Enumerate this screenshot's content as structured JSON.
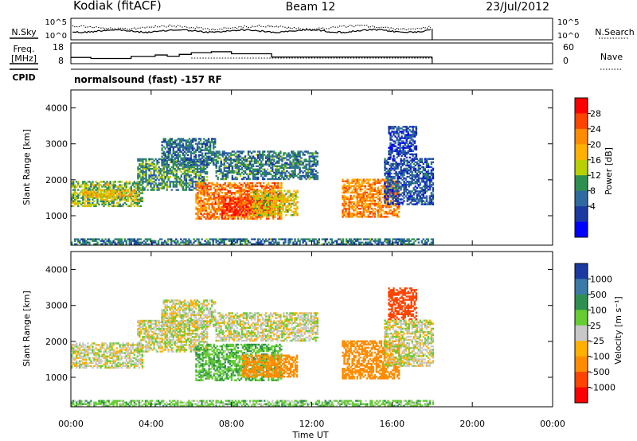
{
  "header": {
    "station": "Kodiak (fitACF)",
    "beam": "Beam 12",
    "date": "23/Jul/2012"
  },
  "noise_panel": {
    "left_label": "N.Sky",
    "right_label": "N.Search",
    "left_ticks": [
      "10^5",
      "10^0"
    ],
    "right_ticks": [
      "10^5",
      "10^0"
    ]
  },
  "freq_panel": {
    "left_label_line1": "Freq.",
    "left_label_line2": "[MHz]",
    "right_label": "Nave",
    "left_ticks": [
      "18",
      "8"
    ],
    "right_ticks": [
      "60",
      "0"
    ]
  },
  "cpid": {
    "label": "CPID",
    "text": "normalsound (fast) -157 RF"
  },
  "x_axis": {
    "ticks": [
      "00:00",
      "04:00",
      "08:00",
      "12:00",
      "16:00",
      "20:00",
      "00:00"
    ],
    "title": "Time UT"
  },
  "power_panel": {
    "y_title": "Slant Range [km]",
    "y_ticks": [
      "4000",
      "3000",
      "2000",
      "1000"
    ],
    "colorbar_title": "Power [dB]",
    "colorbar_ticks": [
      "28",
      "24",
      "20",
      "16",
      "12",
      "8",
      "4"
    ],
    "colorbar_colors": [
      "#ff0000",
      "#ff4400",
      "#ff8c00",
      "#ffb000",
      "#b8d000",
      "#2e9050",
      "#2e6aa0",
      "#1a3aa0",
      "#0000ff"
    ]
  },
  "velocity_panel": {
    "y_title": "Slant Range [km]",
    "y_ticks": [
      "4000",
      "3000",
      "2000",
      "1000"
    ],
    "colorbar_title": "Velocity [m s⁻¹]",
    "colorbar_ticks": [
      "1000",
      "500",
      "100",
      "25",
      "-25",
      "-100",
      "-500",
      "-1000"
    ],
    "colorbar_colors": [
      "#1a3aa0",
      "#3a7aa8",
      "#2e9050",
      "#66cc33",
      "#c8c8c8",
      "#ffb000",
      "#ff8c00",
      "#ff4400",
      "#ff0000"
    ]
  },
  "chart_data": [
    {
      "type": "line",
      "name": "noise",
      "x_range_hours": [
        0,
        24
      ],
      "data_end_hour": 18.0
    },
    {
      "type": "line",
      "name": "frequency",
      "ylim": [
        8,
        18
      ],
      "x_range_hours": [
        0,
        24
      ],
      "data_end_hour": 18.0,
      "step_hours": [
        0,
        1,
        3,
        4.2,
        4.8,
        5.4,
        6,
        7,
        8,
        10,
        18
      ],
      "freq_mhz": [
        11,
        10.5,
        11.5,
        12.2,
        11.6,
        12.5,
        13.3,
        13.8,
        12.8,
        11.2,
        11.2
      ]
    },
    {
      "type": "heatmap",
      "name": "power",
      "ylim": [
        180,
        4500
      ],
      "xlim_hours": [
        0,
        24
      ],
      "value_range_db": [
        0,
        32
      ],
      "data_end_hour": 18.0,
      "bands": [
        {
          "t0": 0.0,
          "t1": 3.6,
          "r0": 1250,
          "r1": 1950,
          "level": 0.45
        },
        {
          "t0": 0.5,
          "t1": 3.2,
          "r0": 1500,
          "r1": 1700,
          "level": 0.62
        },
        {
          "t0": 3.3,
          "t1": 6.8,
          "r0": 1700,
          "r1": 2600,
          "level": 0.35
        },
        {
          "t0": 4.5,
          "t1": 7.2,
          "r0": 2400,
          "r1": 3150,
          "level": 0.28
        },
        {
          "t0": 6.2,
          "t1": 10.5,
          "r0": 900,
          "r1": 1900,
          "level": 0.75
        },
        {
          "t0": 7.5,
          "t1": 10.0,
          "r0": 1000,
          "r1": 1500,
          "level": 0.88
        },
        {
          "t0": 9.0,
          "t1": 11.3,
          "r0": 1000,
          "r1": 1700,
          "level": 0.55
        },
        {
          "t0": 7.2,
          "t1": 12.3,
          "r0": 2000,
          "r1": 2800,
          "level": 0.32
        },
        {
          "t0": 13.5,
          "t1": 16.3,
          "r0": 950,
          "r1": 2000,
          "level": 0.72
        },
        {
          "t0": 15.6,
          "t1": 18.0,
          "r0": 1300,
          "r1": 2600,
          "level": 0.22
        },
        {
          "t0": 15.8,
          "t1": 17.2,
          "r0": 2600,
          "r1": 3500,
          "level": 0.18
        },
        {
          "t0": 0.0,
          "t1": 18.0,
          "r0": 190,
          "r1": 340,
          "level": 0.3
        }
      ]
    },
    {
      "type": "heatmap",
      "name": "velocity",
      "ylim": [
        180,
        4500
      ],
      "xlim_hours": [
        0,
        24
      ],
      "value_range_ms": [
        -1000,
        1000
      ],
      "data_end_hour": 18.0,
      "bands": [
        {
          "t0": 0.0,
          "t1": 3.6,
          "r0": 1250,
          "r1": 1950,
          "vel": 0
        },
        {
          "t0": 3.3,
          "t1": 6.8,
          "r0": 1700,
          "r1": 2600,
          "vel": 0
        },
        {
          "t0": 4.5,
          "t1": 7.2,
          "r0": 2400,
          "r1": 3150,
          "vel": 0
        },
        {
          "t0": 6.2,
          "t1": 10.5,
          "r0": 900,
          "r1": 1900,
          "vel": 80
        },
        {
          "t0": 8.5,
          "t1": 11.3,
          "r0": 1000,
          "r1": 1600,
          "vel": -150
        },
        {
          "t0": 7.2,
          "t1": 12.3,
          "r0": 2000,
          "r1": 2800,
          "vel": 0
        },
        {
          "t0": 13.5,
          "t1": 16.3,
          "r0": 950,
          "r1": 2000,
          "vel": -400
        },
        {
          "t0": 15.6,
          "t1": 18.0,
          "r0": 1300,
          "r1": 2600,
          "vel": 0
        },
        {
          "t0": 15.8,
          "t1": 17.2,
          "r0": 2600,
          "r1": 3500,
          "vel": -600
        },
        {
          "t0": 0.0,
          "t1": 18.0,
          "r0": 190,
          "r1": 340,
          "vel": 60
        }
      ]
    }
  ]
}
